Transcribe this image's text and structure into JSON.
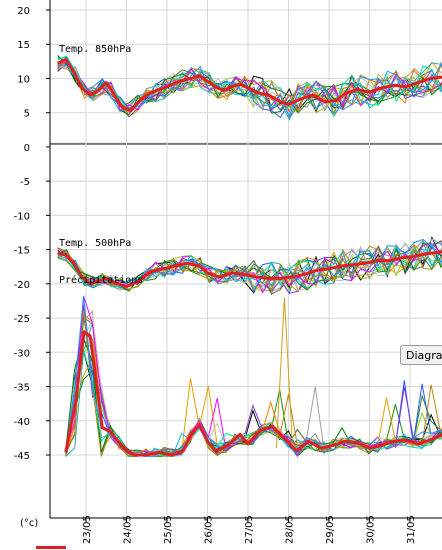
{
  "chart_data": {
    "type": "line",
    "y_unit_label": "(°c)",
    "yticks": [
      "20",
      "15",
      "10",
      "5",
      "0",
      "-5",
      "-10",
      "-15",
      "-20",
      "-25",
      "-30",
      "-35",
      "-40",
      "-45"
    ],
    "ylim": [
      -52,
      20
    ],
    "x_dates": [
      "23/05",
      "24/05",
      "25/05",
      "26/05",
      "27/05",
      "28/05",
      "29/05",
      "30/05",
      "31/05"
    ],
    "xlim": [
      22.3,
      32.0
    ],
    "grid": true,
    "panels": [
      {
        "label": "Temp. 850hPa",
        "color_mean": "#e02020"
      },
      {
        "label": "Temp. 500hPa",
        "color_mean": "#e02020"
      },
      {
        "label": "Précipitations",
        "color_mean": "#e02020"
      }
    ],
    "t850_mean": [
      [
        22.3,
        12.2
      ],
      [
        22.5,
        12.8
      ],
      [
        22.7,
        11.0
      ],
      [
        22.9,
        8.6
      ],
      [
        23.1,
        7.6
      ],
      [
        23.3,
        8.2
      ],
      [
        23.5,
        9.4
      ],
      [
        23.7,
        7.6
      ],
      [
        23.9,
        5.8
      ],
      [
        24.1,
        5.3
      ],
      [
        24.3,
        6.6
      ],
      [
        24.5,
        7.6
      ],
      [
        24.8,
        8.4
      ],
      [
        25.0,
        8.8
      ],
      [
        25.3,
        9.6
      ],
      [
        25.6,
        10.0
      ],
      [
        25.8,
        10.4
      ],
      [
        26.0,
        9.6
      ],
      [
        26.2,
        8.8
      ],
      [
        26.4,
        8.2
      ],
      [
        26.6,
        8.8
      ],
      [
        26.8,
        9.2
      ],
      [
        27.0,
        8.6
      ],
      [
        27.3,
        7.8
      ],
      [
        27.5,
        7.6
      ],
      [
        27.8,
        6.6
      ],
      [
        28.0,
        6.2
      ],
      [
        28.3,
        7.0
      ],
      [
        28.6,
        7.6
      ],
      [
        28.9,
        6.6
      ],
      [
        29.2,
        6.8
      ],
      [
        29.4,
        7.8
      ],
      [
        29.7,
        8.4
      ],
      [
        30.0,
        8.0
      ],
      [
        30.3,
        8.6
      ],
      [
        30.6,
        9.0
      ],
      [
        30.9,
        8.8
      ],
      [
        31.2,
        9.4
      ],
      [
        31.5,
        10.0
      ],
      [
        31.8,
        10.2
      ],
      [
        32.0,
        10.2
      ]
    ],
    "t500_mean": [
      [
        22.3,
        -15.5
      ],
      [
        22.5,
        -15.8
      ],
      [
        22.7,
        -17.0
      ],
      [
        22.9,
        -19.0
      ],
      [
        23.1,
        -20.0
      ],
      [
        23.3,
        -19.6
      ],
      [
        23.5,
        -19.2
      ],
      [
        23.7,
        -19.8
      ],
      [
        24.0,
        -20.4
      ],
      [
        24.3,
        -19.6
      ],
      [
        24.6,
        -18.2
      ],
      [
        24.9,
        -17.8
      ],
      [
        25.2,
        -17.4
      ],
      [
        25.5,
        -17.0
      ],
      [
        25.8,
        -17.4
      ],
      [
        26.0,
        -18.4
      ],
      [
        26.3,
        -19.0
      ],
      [
        26.6,
        -18.4
      ],
      [
        26.9,
        -18.6
      ],
      [
        27.2,
        -19.0
      ],
      [
        27.5,
        -19.2
      ],
      [
        27.8,
        -19.2
      ],
      [
        28.1,
        -19.0
      ],
      [
        28.4,
        -18.6
      ],
      [
        28.7,
        -18.0
      ],
      [
        29.0,
        -17.8
      ],
      [
        29.3,
        -17.4
      ],
      [
        29.6,
        -17.2
      ],
      [
        29.9,
        -17.0
      ],
      [
        30.2,
        -16.6
      ],
      [
        30.5,
        -16.6
      ],
      [
        30.8,
        -16.2
      ],
      [
        31.1,
        -16.0
      ],
      [
        31.4,
        -15.6
      ],
      [
        31.7,
        -15.4
      ],
      [
        32.0,
        -15.2
      ]
    ],
    "precip_mean": [
      [
        22.5,
        -44.6
      ],
      [
        22.75,
        -37.0
      ],
      [
        22.95,
        -27.0
      ],
      [
        23.1,
        -27.6
      ],
      [
        23.25,
        -34.0
      ],
      [
        23.4,
        -41.0
      ],
      [
        23.6,
        -41.6
      ],
      [
        23.8,
        -43.0
      ],
      [
        24.0,
        -44.4
      ],
      [
        24.2,
        -45.0
      ],
      [
        24.5,
        -45.0
      ],
      [
        24.8,
        -44.6
      ],
      [
        25.1,
        -45.0
      ],
      [
        25.4,
        -44.4
      ],
      [
        25.6,
        -42.0
      ],
      [
        25.8,
        -40.6
      ],
      [
        26.0,
        -43.0
      ],
      [
        26.2,
        -44.4
      ],
      [
        26.5,
        -43.6
      ],
      [
        26.8,
        -42.0
      ],
      [
        27.0,
        -43.4
      ],
      [
        27.3,
        -41.4
      ],
      [
        27.6,
        -40.8
      ],
      [
        27.9,
        -42.6
      ],
      [
        28.2,
        -44.4
      ],
      [
        28.5,
        -43.0
      ],
      [
        28.8,
        -44.0
      ],
      [
        29.1,
        -43.6
      ],
      [
        29.4,
        -43.0
      ],
      [
        29.7,
        -43.2
      ],
      [
        30.0,
        -44.0
      ],
      [
        30.3,
        -43.6
      ],
      [
        30.6,
        -43.0
      ],
      [
        30.9,
        -42.8
      ],
      [
        31.2,
        -43.4
      ],
      [
        31.5,
        -42.8
      ],
      [
        31.8,
        -42.0
      ],
      [
        32.0,
        -42.6
      ]
    ]
  },
  "tooltip": {
    "text": "Diagramme"
  },
  "members_colors": [
    "#000000",
    "#1a8a1a",
    "#2b55ff",
    "#e0a000",
    "#8a8a8a",
    "#a0a0a0",
    "#00c0ff",
    "#9acd32",
    "#7b3fd6",
    "#ff8000",
    "#22b0b0",
    "#556b2f",
    "#c0c0c0",
    "#008000",
    "#ff00ff",
    "#00e0a0",
    "#b8860b",
    "#1e90ff"
  ]
}
